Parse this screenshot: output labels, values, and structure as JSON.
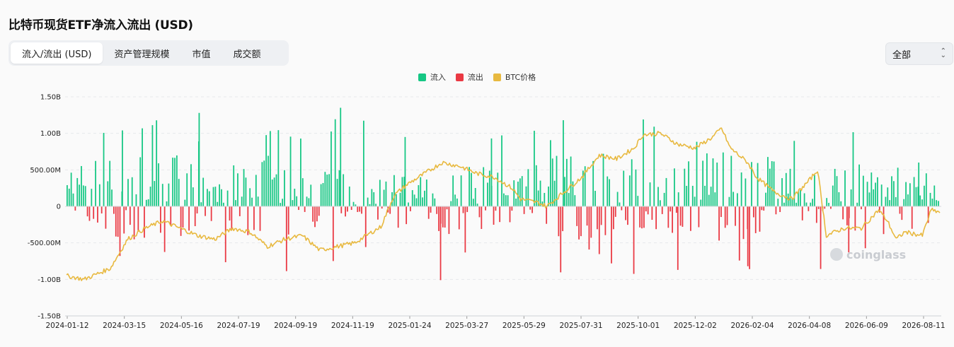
{
  "title": "比特币现货ETF净流入流出 (USD)",
  "tabs": [
    {
      "label": "流入/流出 (USD)",
      "active": true
    },
    {
      "label": "资产管理规模",
      "active": false
    },
    {
      "label": "市值",
      "active": false
    },
    {
      "label": "成交额",
      "active": false
    }
  ],
  "filter": {
    "selected": "全部"
  },
  "legend": [
    {
      "label": "流入",
      "color": "#16c784"
    },
    {
      "label": "流出",
      "color": "#ea3943"
    },
    {
      "label": "BTC价格",
      "color": "#e8b940"
    }
  ],
  "watermark": "coinglass",
  "chart_data": {
    "type": "bar",
    "y_ticks": [
      "1.50B",
      "1.00B",
      "500.00M",
      "0",
      "-500.00M",
      "-1.00B",
      "-1.50B"
    ],
    "ylim": [
      -1.5,
      1.5
    ],
    "y_unit": "B USD",
    "x_ticks": [
      "2024-01-12",
      "2024-03-15",
      "2024-05-16",
      "2024-07-19",
      "2024-09-19",
      "2024-11-19",
      "2025-01-24",
      "2025-03-27",
      "2025-05-29",
      "2025-07-31",
      "2025-10-01",
      "2025-12-02",
      "2026-02-04",
      "2026-04-08",
      "2026-06-09",
      "2026-08-11"
    ],
    "inflow_peaks_B": [
      {
        "date": "2024-03-12",
        "value": 1.04
      },
      {
        "date": "2024-06-04",
        "value": 0.89
      },
      {
        "date": "2024-11-07",
        "value": 1.35
      },
      {
        "date": "2025-01-17",
        "value": 0.95
      },
      {
        "date": "2025-04-22",
        "value": 0.93
      },
      {
        "date": "2025-07-10",
        "value": 1.18
      },
      {
        "date": "2025-10-06",
        "value": 1.19
      },
      {
        "date": "2026-08-05",
        "value": 0.6
      }
    ],
    "outflow_peaks_B": [
      {
        "date": "2025-02-25",
        "value": -1.01
      },
      {
        "date": "2025-11-13",
        "value": -0.87
      },
      {
        "date": "2026-01-29",
        "value": -0.82
      },
      {
        "date": "2026-05-20",
        "value": -0.63
      }
    ],
    "btc_price_trend_note": "secondary series shown as relative curve",
    "series": [
      {
        "name": "流入",
        "color": "#16c784"
      },
      {
        "name": "流出",
        "color": "#ea3943"
      },
      {
        "name": "BTC价格",
        "color": "#e8b940"
      }
    ]
  }
}
